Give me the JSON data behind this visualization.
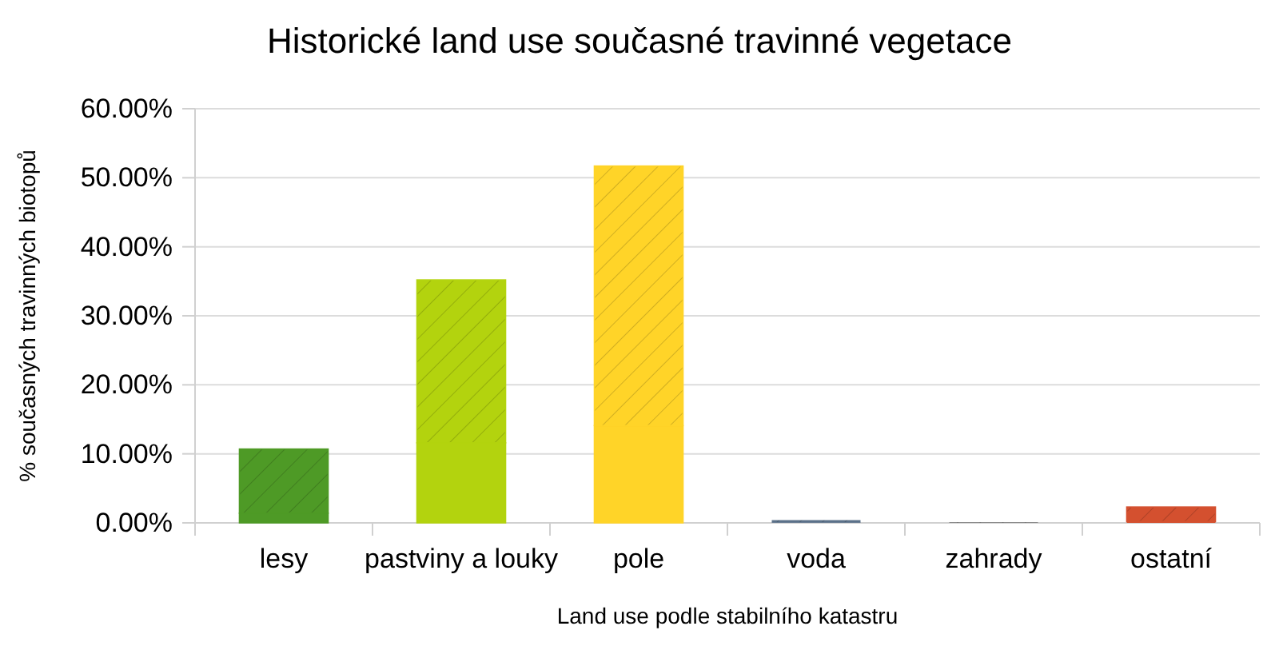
{
  "chart_data": {
    "type": "bar",
    "title": "Historické land use současné travinné vegetace",
    "xlabel": "Land use podle stabilního katastru",
    "ylabel": "% současných travinných biotopů",
    "categories": [
      "lesy",
      "pastviny a louky",
      "pole",
      "voda",
      "zahrady",
      "ostatní"
    ],
    "stacked": true,
    "series": [
      {
        "colors": [
          "#4e9a26",
          "#b3d30e",
          "#ffd428",
          "#5b7189",
          "#808080",
          "#d4502f"
        ],
        "values": [
          1.4,
          11.6,
          14.1,
          0.1,
          0,
          0.2
        ]
      },
      {
        "colors": [
          "#4e9a26",
          "#b3d30e",
          "#ffd428",
          "#5b7189",
          "#808080",
          "#d4502f"
        ],
        "values": [
          9.3,
          23.6,
          37.6,
          0.3,
          0.1,
          2.1
        ]
      }
    ],
    "ylim": [
      0,
      60
    ],
    "yticks": [
      {
        "value": 0,
        "label": "0.00%"
      },
      {
        "value": 10,
        "label": "10.00%"
      },
      {
        "value": 20,
        "label": "20.00%"
      },
      {
        "value": 30,
        "label": "30.00%"
      },
      {
        "value": 40,
        "label": "40.00%"
      },
      {
        "value": 50,
        "label": "50.00%"
      },
      {
        "value": 60,
        "label": "60.00%"
      }
    ],
    "grid": "y"
  }
}
